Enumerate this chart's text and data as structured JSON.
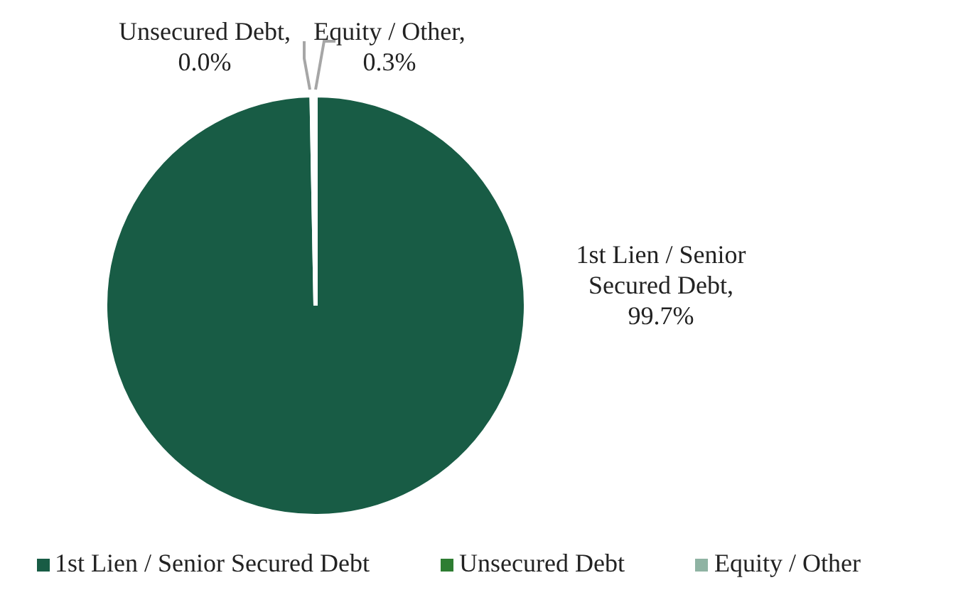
{
  "chart_data": {
    "type": "pie",
    "categories": [
      "1st Lien / Senior Secured Debt",
      "Unsecured Debt",
      "Equity / Other"
    ],
    "values": [
      99.7,
      0,
      0.3
    ],
    "value_labels": [
      "1st Lien / Senior Secured Debt, 99.7%",
      "Unsecured Debt, 0.0%",
      "Equity / Other, 0.3%"
    ],
    "colors": [
      "#185c45",
      "#2e7d32",
      "#8fb3a3"
    ],
    "legend": "bottom"
  }
}
